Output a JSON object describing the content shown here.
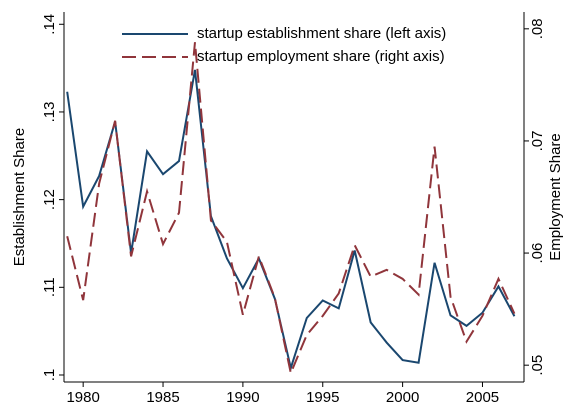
{
  "chart_data": {
    "type": "line",
    "x": [
      1979,
      1980,
      1981,
      1982,
      1983,
      1984,
      1985,
      1986,
      1987,
      1988,
      1989,
      1990,
      1991,
      1992,
      1993,
      1994,
      1995,
      1996,
      1997,
      1998,
      1999,
      2000,
      2001,
      2002,
      2003,
      2004,
      2005,
      2006,
      2007
    ],
    "series": [
      {
        "name": "startup establishment share (left axis)",
        "color": "#1a476f",
        "axis": "y",
        "dash": "solid",
        "values": [
          0.1323,
          0.1192,
          0.1227,
          0.1289,
          0.1139,
          0.1255,
          0.1229,
          0.1244,
          0.1348,
          0.1181,
          0.1133,
          0.1099,
          0.1133,
          0.1087,
          0.1008,
          0.1065,
          0.1085,
          0.1076,
          0.1142,
          0.106,
          0.1037,
          0.1017,
          0.1014,
          0.1128,
          0.1068,
          0.1056,
          0.1071,
          0.1101,
          0.1067
        ]
      },
      {
        "name": "startup employment share (right axis)",
        "color": "#90353b",
        "axis": "y2",
        "dash": "dashed",
        "values": [
          0.0615,
          0.0558,
          0.0662,
          0.0718,
          0.0597,
          0.0655,
          0.0608,
          0.0636,
          0.0788,
          0.0629,
          0.061,
          0.0545,
          0.0597,
          0.056,
          0.0493,
          0.0527,
          0.0544,
          0.0564,
          0.0607,
          0.0579,
          0.0585,
          0.0577,
          0.0563,
          0.0695,
          0.0561,
          0.0521,
          0.0544,
          0.0577,
          0.0546
        ]
      }
    ],
    "y_label": "Establishment Share",
    "y2_label": "Employment Share",
    "xlim": [
      1978.8,
      2007.6
    ],
    "xticks": [
      1980,
      1985,
      1990,
      1995,
      2000,
      2005
    ],
    "ylim": [
      0.0992,
      0.1414
    ],
    "yticks": [
      {
        "value": 0.1,
        "label": ".1"
      },
      {
        "value": 0.11,
        "label": ".11"
      },
      {
        "value": 0.12,
        "label": ".12"
      },
      {
        "value": 0.13,
        "label": ".13"
      },
      {
        "value": 0.14,
        "label": ".14"
      }
    ],
    "y2lim": [
      0.0485,
      0.0815
    ],
    "y2ticks": [
      {
        "value": 0.05,
        "label": ".05"
      },
      {
        "value": 0.06,
        "label": ".06"
      },
      {
        "value": 0.07,
        "label": ".07"
      },
      {
        "value": 0.08,
        "label": ".08"
      }
    ],
    "grid": false,
    "legend": "top"
  }
}
